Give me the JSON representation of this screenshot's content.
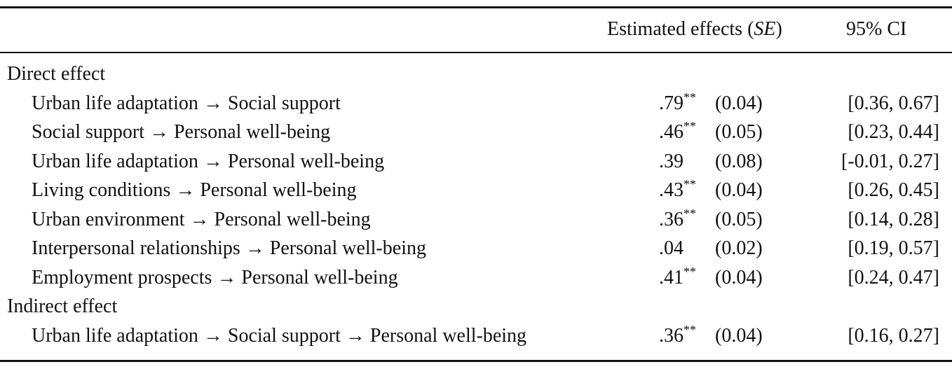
{
  "header": {
    "effects": {
      "text": "Estimated effects (",
      "italic": "SE",
      "close": ")"
    },
    "ci": "95% CI"
  },
  "sections": [
    {
      "title": "Direct effect",
      "rows": [
        {
          "label": "Urban life adaptation → Social support",
          "estimate": ".79",
          "significance": "**",
          "se": "(0.04)",
          "ci": "[0.36, 0.67]"
        },
        {
          "label": "Social support → Personal well-being",
          "estimate": ".46",
          "significance": "**",
          "se": "(0.05)",
          "ci": "[0.23, 0.44]"
        },
        {
          "label": "Urban life adaptation → Personal well-being",
          "estimate": ".39",
          "se": "(0.08)",
          "ci": "[-0.01, 0.27]"
        },
        {
          "label": "Living conditions → Personal well-being",
          "estimate": ".43",
          "significance": "**",
          "se": "(0.04)",
          "ci": "[0.26, 0.45]"
        },
        {
          "label": "Urban environment → Personal well-being",
          "estimate": ".36",
          "significance": "**",
          "se": "(0.05)",
          "ci": "[0.14, 0.28]"
        },
        {
          "label": "Interpersonal relationships → Personal well-being",
          "estimate": ".04",
          "se": "(0.02)",
          "ci": "[0.19, 0.57]"
        },
        {
          "label": "Employment prospects → Personal well-being",
          "estimate": ".41",
          "significance": "**",
          "se": "(0.04)",
          "ci": "[0.24, 0.47]"
        }
      ]
    },
    {
      "title": "Indirect effect",
      "rows": [
        {
          "label": "Urban life adaptation → Social support → Personal well-being",
          "estimate": ".36",
          "significance": "**",
          "se": "(0.04)",
          "ci": "[0.16, 0.27]"
        }
      ]
    }
  ]
}
